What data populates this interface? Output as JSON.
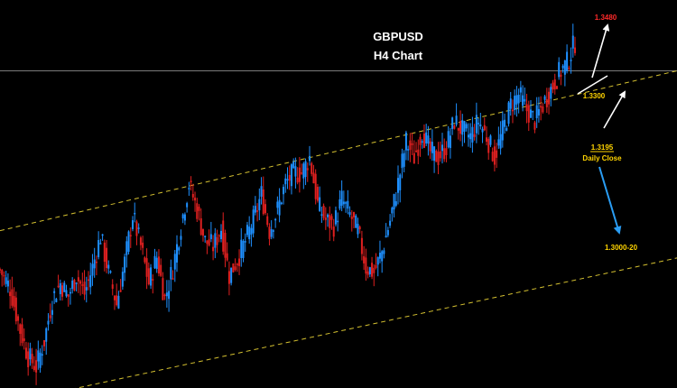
{
  "chart_data": {
    "type": "candlestick",
    "title": "GBPUSD",
    "subtitle": "H4 Chart",
    "colors": {
      "background": "#000000",
      "up_candle": "#1e90ff",
      "down_candle": "#e02020",
      "channel_line": "#d4c030",
      "horizontal_line": "#7a7a7a",
      "target_label": "#ff2a2a",
      "level_label": "#ffd400",
      "bull_arrow": "#ffffff",
      "bear_arrow": "#2a9df4"
    },
    "price_range": [
      1.276,
      1.35
    ],
    "horizontal_line_price": 1.3365,
    "channel_lines": [
      {
        "name": "upper",
        "start_price": 1.306,
        "end_price": 1.3365
      },
      {
        "name": "lower",
        "start_price": 1.2728,
        "end_price": 1.3008
      }
    ],
    "levels": [
      {
        "key": "target",
        "label": "1.3480"
      },
      {
        "key": "resistance",
        "label": "1.3300"
      },
      {
        "key": "support",
        "label": "1.3195",
        "note": "Daily Close"
      },
      {
        "key": "channel_bottom",
        "label": "1.3000-20"
      }
    ],
    "close_path": [
      [
        0,
        1.2985
      ],
      [
        5,
        1.295
      ],
      [
        10,
        1.287
      ],
      [
        14,
        1.282
      ],
      [
        18,
        1.28
      ],
      [
        22,
        1.285
      ],
      [
        26,
        1.293
      ],
      [
        30,
        1.296
      ],
      [
        34,
        1.2935
      ],
      [
        38,
        1.2975
      ],
      [
        42,
        1.294
      ],
      [
        46,
        1.299
      ],
      [
        50,
        1.305
      ],
      [
        54,
        1.298
      ],
      [
        58,
        1.292
      ],
      [
        62,
        1.3
      ],
      [
        66,
        1.309
      ],
      [
        70,
        1.303
      ],
      [
        74,
        1.296
      ],
      [
        78,
        1.301
      ],
      [
        82,
        1.293
      ],
      [
        86,
        1.299
      ],
      [
        90,
        1.307
      ],
      [
        94,
        1.315
      ],
      [
        98,
        1.31
      ],
      [
        102,
        1.304
      ],
      [
        106,
        1.303
      ],
      [
        110,
        1.3065
      ],
      [
        114,
        1.2975
      ],
      [
        118,
        1.3005
      ],
      [
        122,
        1.304
      ],
      [
        126,
        1.308
      ],
      [
        130,
        1.313
      ],
      [
        134,
        1.306
      ],
      [
        138,
        1.31
      ],
      [
        142,
        1.315
      ],
      [
        146,
        1.317
      ],
      [
        150,
        1.317
      ],
      [
        154,
        1.32
      ],
      [
        158,
        1.311
      ],
      [
        162,
        1.308
      ],
      [
        166,
        1.307
      ],
      [
        170,
        1.312
      ],
      [
        174,
        1.309
      ],
      [
        178,
        1.306
      ],
      [
        182,
        1.299
      ],
      [
        186,
        1.298
      ],
      [
        190,
        1.302
      ],
      [
        194,
        1.308
      ],
      [
        198,
        1.315
      ],
      [
        202,
        1.323
      ],
      [
        206,
        1.32
      ],
      [
        210,
        1.325
      ],
      [
        214,
        1.321
      ],
      [
        218,
        1.32
      ],
      [
        222,
        1.322
      ],
      [
        226,
        1.327
      ],
      [
        230,
        1.325
      ],
      [
        234,
        1.324
      ],
      [
        238,
        1.327
      ],
      [
        242,
        1.324
      ],
      [
        246,
        1.32
      ],
      [
        250,
        1.325
      ],
      [
        254,
        1.33
      ],
      [
        258,
        1.332
      ],
      [
        262,
        1.329
      ],
      [
        266,
        1.327
      ],
      [
        270,
        1.33
      ],
      [
        274,
        1.333
      ],
      [
        278,
        1.336
      ],
      [
        282,
        1.338
      ],
      [
        286,
        1.342
      ]
    ]
  }
}
